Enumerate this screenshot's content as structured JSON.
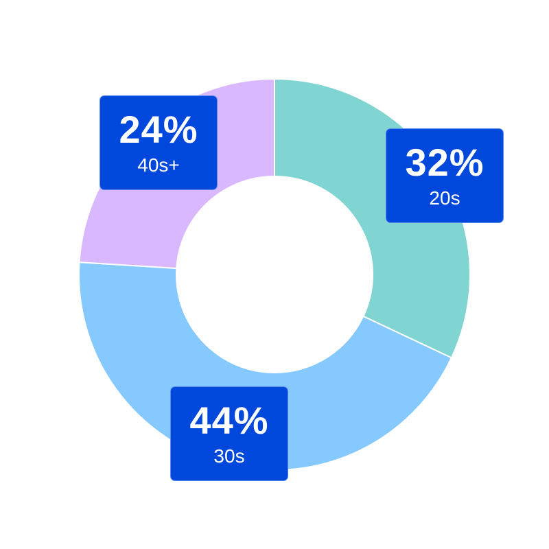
{
  "chart_data": {
    "type": "pie",
    "donut": true,
    "categories": [
      "20s",
      "30s",
      "40s+"
    ],
    "values": [
      32,
      44,
      24
    ],
    "value_labels": [
      "32%",
      "44%",
      "24%"
    ],
    "colors": [
      "#80d4d1",
      "#85c9ff",
      "#d9b8ff"
    ],
    "label_background": "#0047dc",
    "start_angle": "12 o'clock",
    "direction": "clockwise"
  }
}
